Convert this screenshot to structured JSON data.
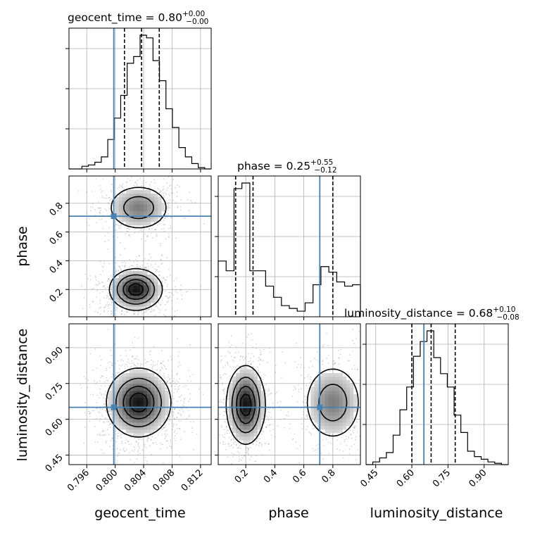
{
  "figure": {
    "truth_color": "#4682b4",
    "titles": {
      "geocent_time": {
        "name": "geocent_time",
        "value": "0.80",
        "plus": "+0.00",
        "minus": "−0.00"
      },
      "phase": {
        "name": "phase",
        "value": "0.25",
        "plus": "+0.55",
        "minus": "−0.12"
      },
      "luminosity_distance": {
        "name": "luminosity_distance",
        "value": "0.68",
        "plus": "+0.10",
        "minus": "−0.08"
      }
    },
    "axis_labels": {
      "x1": "geocent_time",
      "x2": "phase",
      "x3": "luminosity_distance",
      "y2": "phase",
      "y3": "luminosity_distance"
    }
  },
  "chart_data": {
    "type": "corner",
    "parameters": [
      "geocent_time",
      "phase",
      "luminosity_distance"
    ],
    "ranges": {
      "geocent_time": [
        0.7935,
        0.8135
      ],
      "phase": [
        0.01,
        0.99
      ],
      "luminosity_distance": [
        0.41,
        1.0
      ]
    },
    "ticks": {
      "geocent_time": [
        0.796,
        0.8,
        0.804,
        0.808,
        0.812
      ],
      "phase": [
        0.2,
        0.4,
        0.6,
        0.8
      ],
      "luminosity_distance": [
        0.45,
        0.6,
        0.75,
        0.9
      ]
    },
    "tick_labels": {
      "geocent_time": [
        "0.796",
        "0.800",
        "0.804",
        "0.808",
        "0.812"
      ],
      "phase": [
        "0.2",
        "0.4",
        "0.6",
        "0.8"
      ],
      "luminosity_distance": [
        "0.45",
        "0.60",
        "0.75",
        "0.90"
      ]
    },
    "truths": {
      "geocent_time": 0.7998,
      "phase": 0.71,
      "luminosity_distance": 0.65
    },
    "quantiles": {
      "geocent_time": [
        0.8013,
        0.8037,
        0.8062
      ],
      "phase": [
        0.13,
        0.25,
        0.8
      ],
      "luminosity_distance": [
        0.6,
        0.68,
        0.78
      ]
    },
    "histograms": {
      "geocent_time": {
        "edges_range": [
          0.7935,
          0.8135
        ],
        "counts": [
          0,
          0,
          2,
          3,
          5,
          9,
          22,
          38,
          55,
          79,
          84,
          100,
          98,
          81,
          66,
          45,
          31,
          16,
          9,
          4,
          1,
          0
        ]
      },
      "phase": {
        "edges_range": [
          0.01,
          0.99
        ],
        "counts": [
          40,
          33,
          92,
          96,
          33,
          33,
          22,
          14,
          8,
          6,
          4,
          10,
          23,
          36,
          32,
          25,
          22,
          23
        ]
      },
      "luminosity_distance": {
        "edges_range": [
          0.41,
          1.0
        ],
        "counts": [
          0,
          2,
          5,
          9,
          22,
          41,
          58,
          81,
          92,
          100,
          80,
          68,
          58,
          37,
          24,
          10,
          6,
          4,
          2,
          1,
          0
        ]
      }
    },
    "posterior_2d": {
      "phase_vs_geocent_time": {
        "modes": [
          {
            "center": [
              0.8029,
              0.2
            ],
            "sigma": [
              0.0018,
              0.07
            ],
            "weight": 1.0
          },
          {
            "center": [
              0.8033,
              0.77
            ],
            "sigma": [
              0.0022,
              0.08
            ],
            "weight": 0.55
          }
        ]
      },
      "luminosity_distance_vs_geocent_time": {
        "modes": [
          {
            "center": [
              0.8033,
              0.67
            ],
            "sigma": [
              0.0022,
              0.07
            ],
            "weight": 1.0
          }
        ]
      },
      "luminosity_distance_vs_phase": {
        "modes": [
          {
            "center": [
              0.2,
              0.66
            ],
            "sigma": [
              0.065,
              0.08
            ],
            "weight": 1.0
          },
          {
            "center": [
              0.8,
              0.67
            ],
            "sigma": [
              0.1,
              0.08
            ],
            "weight": 0.55
          }
        ]
      }
    }
  }
}
